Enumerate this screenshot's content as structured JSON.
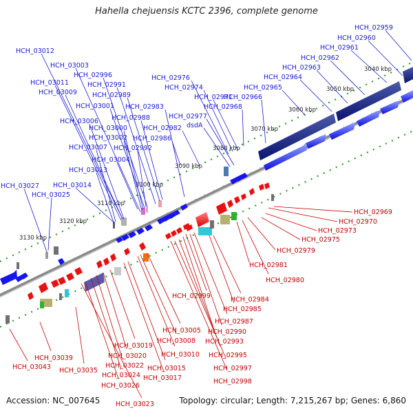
{
  "title": "Hahella chejuensis KCTC 2396, complete genome",
  "footer": {
    "accession": "Accession: NC_007645",
    "topology": "Topology: circular; Length: 7,215,267 bp; Genes: 6,860"
  },
  "colors": {
    "forward_label": "#1a1ad0",
    "reverse_label": "#c00000",
    "forward_gene": "#1010f0",
    "reverse_gene": "#f01010",
    "dark_block": "#0c1a7a",
    "tick": "#2a9a2a"
  },
  "kbp_ticks": [
    "3040 kbp",
    "3050 kbp",
    "3060 kbp",
    "3070 kbp",
    "3080 kbp",
    "3090 kbp",
    "3100 kbp",
    "3110 kbp",
    "3120 kbp",
    "3130 kbp"
  ],
  "forward_labels": [
    "HCH_02959",
    "HCH_02960",
    "HCH_02961",
    "HCH_02962",
    "HCH_02963",
    "HCH_02964",
    "HCH_02965",
    "HCH_02966",
    "HCH_02968",
    "HCH_02971",
    "dsdA",
    "HCH_02977",
    "HCH_02974",
    "HCH_02976",
    "HCH_02983",
    "HCH_02982",
    "HCH_02986",
    "HCH_02988",
    "HCH_02989",
    "HCH_02991",
    "HCH_02996",
    "HCH_03001",
    "HCH_03000",
    "HCH_03002",
    "HCH_02992",
    "HCH_03004",
    "HCH_03003",
    "HCH_03012",
    "HCH_03011",
    "HCH_03009",
    "HCH_03006",
    "HCH_03007",
    "HCH_03013",
    "HCH_03014",
    "HCH_03025",
    "HCH_03027"
  ],
  "reverse_labels": [
    "HCH_02969",
    "HCH_02970",
    "HCH_02973",
    "HCH_02975",
    "HCH_02979",
    "HCH_02981",
    "HCH_02980",
    "HCH_02984",
    "HCH_02985",
    "HCH_02999",
    "HCH_02987",
    "HCH_02990",
    "HCH_02993",
    "HCH_02995",
    "HCH_02997",
    "HCH_02998",
    "HCH_03005",
    "HCH_03008",
    "HCH_03010",
    "HCH_03015",
    "HCH_03017",
    "HCH_03019",
    "HCH_03020",
    "HCH_03022",
    "HCH_03024",
    "HCH_03026",
    "HCH_03023",
    "HCH_03035",
    "HCH_03039",
    "HCH_03043"
  ]
}
